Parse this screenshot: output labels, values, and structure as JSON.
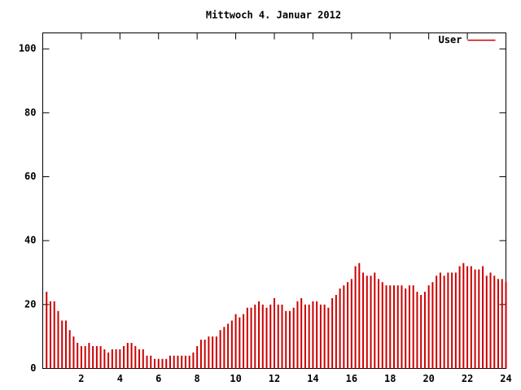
{
  "chart_data": {
    "type": "impulses",
    "title": "Mittwoch 4. Januar 2012",
    "xlim": [
      0,
      24
    ],
    "ylim": [
      0,
      105
    ],
    "xticks": [
      2,
      4,
      6,
      8,
      10,
      12,
      14,
      16,
      18,
      20,
      22,
      24
    ],
    "yticks": [
      0,
      20,
      40,
      60,
      80,
      100
    ],
    "legend": "top-right",
    "x": [
      0.2,
      0.4,
      0.6,
      0.8,
      1,
      1.2,
      1.4,
      1.6,
      1.8,
      2,
      2.2,
      2.4,
      2.6,
      2.8,
      3,
      3.2,
      3.4,
      3.6,
      3.8,
      4,
      4.2,
      4.4,
      4.6,
      4.8,
      5,
      5.2,
      5.4,
      5.6,
      5.8,
      6,
      6.2,
      6.4,
      6.6,
      6.8,
      7,
      7.2,
      7.4,
      7.6,
      7.8,
      8,
      8.2,
      8.4,
      8.6,
      8.8,
      9,
      9.2,
      9.4,
      9.6,
      9.8,
      10,
      10.2,
      10.4,
      10.6,
      10.8,
      11,
      11.2,
      11.4,
      11.6,
      11.8,
      12,
      12.2,
      12.4,
      12.6,
      12.8,
      13,
      13.2,
      13.4,
      13.6,
      13.8,
      14,
      14.2,
      14.4,
      14.6,
      14.8,
      15,
      15.2,
      15.4,
      15.6,
      15.8,
      16,
      16.2,
      16.4,
      16.6,
      16.8,
      17,
      17.2,
      17.4,
      17.6,
      17.8,
      18,
      18.2,
      18.4,
      18.6,
      18.8,
      19,
      19.2,
      19.4,
      19.6,
      19.8,
      20,
      20.2,
      20.4,
      20.6,
      20.8,
      21,
      21.2,
      21.4,
      21.6,
      21.8,
      22,
      22.2,
      22.4,
      22.6,
      22.8,
      23,
      23.2,
      23.4,
      23.6,
      23.8,
      24
    ],
    "series": [
      {
        "name": "User",
        "color": "#cc0000",
        "values": [
          24,
          21,
          21,
          18,
          15,
          15,
          12,
          10,
          8,
          7,
          7,
          8,
          7,
          7,
          7,
          6,
          5,
          6,
          6,
          6,
          7,
          8,
          8,
          7,
          6,
          6,
          4,
          4,
          3,
          3,
          3,
          3,
          4,
          4,
          4,
          4,
          4,
          4,
          5,
          7,
          9,
          9,
          10,
          10,
          10,
          12,
          13,
          14,
          15,
          17,
          16,
          17,
          19,
          19,
          20,
          21,
          20,
          19,
          20,
          22,
          20,
          20,
          18,
          18,
          19,
          21,
          22,
          20,
          20,
          21,
          21,
          20,
          20,
          19,
          22,
          23,
          25,
          26,
          27,
          28,
          32,
          33,
          30,
          29,
          29,
          30,
          28,
          27,
          26,
          26,
          26,
          26,
          26,
          25,
          26,
          26,
          24,
          23,
          24,
          26,
          27,
          29,
          30,
          29,
          30,
          30,
          30,
          32,
          33,
          32,
          32,
          31,
          31,
          32,
          29,
          30,
          29,
          28,
          28,
          27
        ]
      }
    ]
  }
}
